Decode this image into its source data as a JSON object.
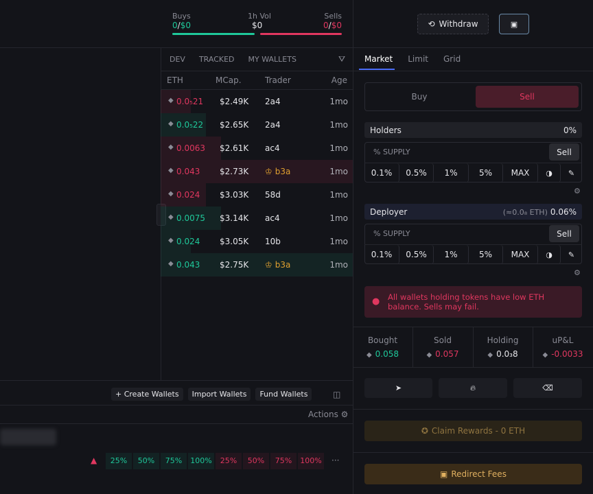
{
  "header": {
    "buys": {
      "label": "Buys",
      "count": "0",
      "separator": "/",
      "amount": "$0"
    },
    "volume": {
      "label": "1h Vol",
      "amount": "$0"
    },
    "sells": {
      "label": "Sells",
      "count": "0",
      "separator": "/",
      "amount": "$0"
    },
    "withdraw": "Withdraw"
  },
  "trades": {
    "filters": [
      "DEV",
      "TRACKED",
      "MY WALLETS"
    ],
    "columns": [
      "ETH",
      "MCap.",
      "Trader",
      "Age"
    ],
    "rows": [
      {
        "side": "sell",
        "eth": "0.0₅21",
        "mcap": "$2.49K",
        "trader": "2a4",
        "age": "1mo"
      },
      {
        "side": "buy",
        "eth": "0.0₅22",
        "mcap": "$2.65K",
        "trader": "2a4",
        "age": "1mo"
      },
      {
        "side": "sell",
        "eth": "0.0063",
        "mcap": "$2.61K",
        "trader": "ac4",
        "age": "1mo"
      },
      {
        "side": "sell",
        "eth": "0.043",
        "mcap": "$2.73K",
        "trader": "b3a",
        "trader_color": "#e0a030",
        "age": "1mo"
      },
      {
        "side": "sell",
        "eth": "0.024",
        "mcap": "$3.03K",
        "trader": "58d",
        "age": "1mo"
      },
      {
        "side": "buy",
        "eth": "0.0075",
        "mcap": "$3.14K",
        "trader": "ac4",
        "age": "1mo"
      },
      {
        "side": "buy",
        "eth": "0.024",
        "mcap": "$3.05K",
        "trader": "10b",
        "age": "1mo"
      },
      {
        "side": "buy",
        "eth": "0.043",
        "mcap": "$2.75K",
        "trader": "b3a",
        "trader_color": "#e0a030",
        "age": "1mo"
      }
    ]
  },
  "wallet_bar": {
    "buttons": [
      "+ Create Wallets",
      "Import Wallets",
      "Fund Wallets"
    ],
    "actions": "Actions",
    "buy_presets": [
      "25%",
      "50%",
      "75%",
      "100%"
    ],
    "sell_presets": [
      "25%",
      "50%",
      "75%",
      "100%"
    ],
    "more": "···"
  },
  "order": {
    "tabs": [
      "Market",
      "Limit",
      "Grid"
    ],
    "sides": [
      "Buy",
      "Sell"
    ],
    "holders": {
      "label": "Holders",
      "value": "0%",
      "supply": "% SUPPLY",
      "sell": "Sell",
      "presets": [
        "0.1%",
        "0.5%",
        "1%",
        "5%",
        "MAX"
      ]
    },
    "deployer": {
      "label": "Deployer",
      "eth": "(≈0.0₈ ETH)",
      "value": "0.06%",
      "supply": "% SUPPLY",
      "sell": "Sell",
      "presets": [
        "0.1%",
        "0.5%",
        "1%",
        "5%",
        "MAX"
      ]
    },
    "alert": "All wallets holding tokens have low ETH balance. Sells may fail.",
    "stats": [
      {
        "label": "Bought",
        "value": "0.058",
        "color": "#1fc89a"
      },
      {
        "label": "Sold",
        "value": "0.057",
        "color": "#e0375f"
      },
      {
        "label": "Holding",
        "value": "0.0₃8",
        "color": "#e6e6ea"
      },
      {
        "label": "uP&L",
        "value": "-0.0033",
        "color": "#e0375f"
      }
    ],
    "claim": "Claim Rewards - 0 ETH",
    "redirect": "Redirect Fees"
  }
}
